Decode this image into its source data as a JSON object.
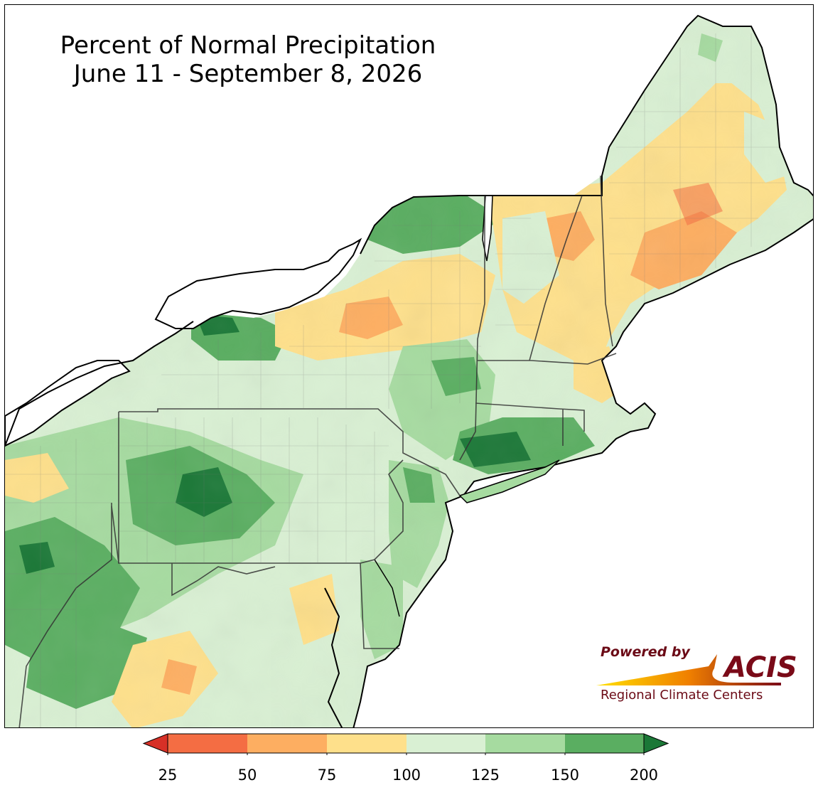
{
  "title": {
    "line1": "Percent of Normal Precipitation",
    "line2": "June 11 - September 8, 2026"
  },
  "legend": {
    "ticks": [
      "25",
      "50",
      "75",
      "100",
      "125",
      "150",
      "200"
    ],
    "bins": [
      {
        "range": "<25",
        "color": "#d73027"
      },
      {
        "range": "25-50",
        "color": "#f46d43"
      },
      {
        "range": "50-75",
        "color": "#fdae61"
      },
      {
        "range": "75-100",
        "color": "#fee08b"
      },
      {
        "range": "100-125",
        "color": "#d9f0d3"
      },
      {
        "range": "125-150",
        "color": "#a6dba0"
      },
      {
        "range": "150-200",
        "color": "#5aae61"
      },
      {
        "range": ">200",
        "color": "#1b7837"
      }
    ]
  },
  "credit": {
    "powered_by": "Powered by",
    "acis": "ACIS",
    "rcc": "Regional Climate Centers"
  },
  "colors": {
    "border": "#000000",
    "water": "#ffffff"
  }
}
